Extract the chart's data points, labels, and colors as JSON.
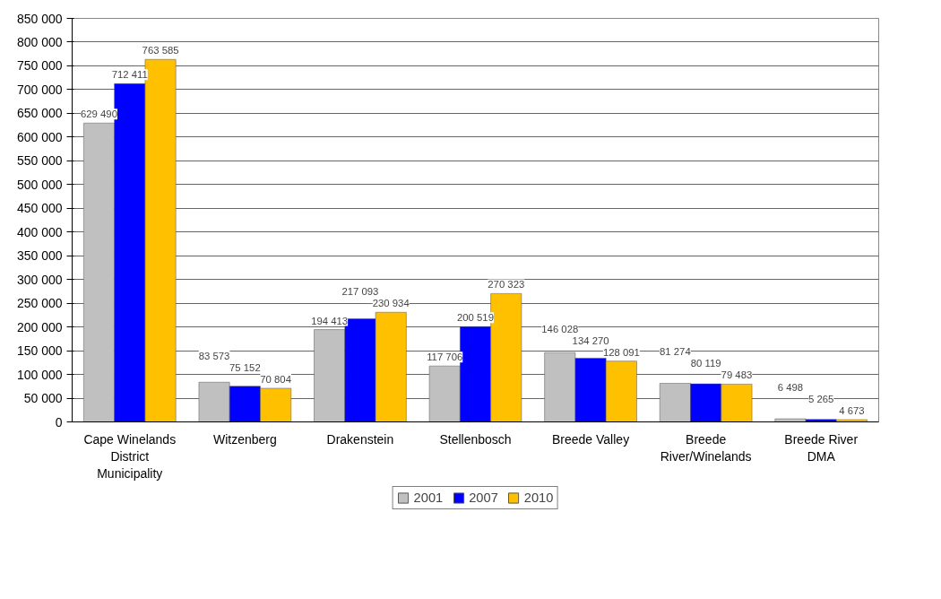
{
  "chart_data": {
    "type": "bar",
    "categories": [
      "Cape Winelands\nDistrict\nMunicipality",
      "Witzenberg",
      "Drakenstein",
      "Stellenbosch",
      "Breede Valley",
      "Breede\nRiver/Winelands",
      "Breede River\nDMA"
    ],
    "series": [
      {
        "name": "2001",
        "color": "#c0c0c0",
        "values": [
          629490,
          83573,
          194413,
          117706,
          146028,
          81274,
          6498
        ],
        "value_labels": [
          "629 490",
          "83 573",
          "194 413",
          "117 706",
          "146 028",
          "81 274",
          "6 498"
        ]
      },
      {
        "name": "2007",
        "color": "#0000ff",
        "values": [
          712411,
          75152,
          217093,
          200519,
          134270,
          80119,
          5265
        ],
        "value_labels": [
          "712 411",
          "75 152",
          "217 093",
          "200 519",
          "134 270",
          "80 119",
          "5 265"
        ]
      },
      {
        "name": "2010",
        "color": "#ffc000",
        "values": [
          763585,
          70804,
          230934,
          270323,
          128091,
          79483,
          4673
        ],
        "value_labels": [
          "763 585",
          "70 804",
          "230 934",
          "270 323",
          "128 091",
          "79 483",
          "4 673"
        ]
      }
    ],
    "ylim": [
      0,
      850000
    ],
    "yticks": [
      {
        "value": 0,
        "label": "0"
      },
      {
        "value": 50000,
        "label": "50 000"
      },
      {
        "value": 100000,
        "label": "100 000"
      },
      {
        "value": 150000,
        "label": "150 000"
      },
      {
        "value": 200000,
        "label": "200 000"
      },
      {
        "value": 250000,
        "label": "250 000"
      },
      {
        "value": 300000,
        "label": "300 000"
      },
      {
        "value": 350000,
        "label": "350 000"
      },
      {
        "value": 400000,
        "label": "400 000"
      },
      {
        "value": 450000,
        "label": "450 000"
      },
      {
        "value": 500000,
        "label": "500 000"
      },
      {
        "value": 550000,
        "label": "550 000"
      },
      {
        "value": 600000,
        "label": "600 000"
      },
      {
        "value": 650000,
        "label": "650 000"
      },
      {
        "value": 700000,
        "label": "700 000"
      },
      {
        "value": 750000,
        "label": "750 000"
      },
      {
        "value": 800000,
        "label": "800 000"
      },
      {
        "value": 850000,
        "label": "850 000"
      }
    ],
    "grid": "y",
    "legend": "bottom"
  }
}
